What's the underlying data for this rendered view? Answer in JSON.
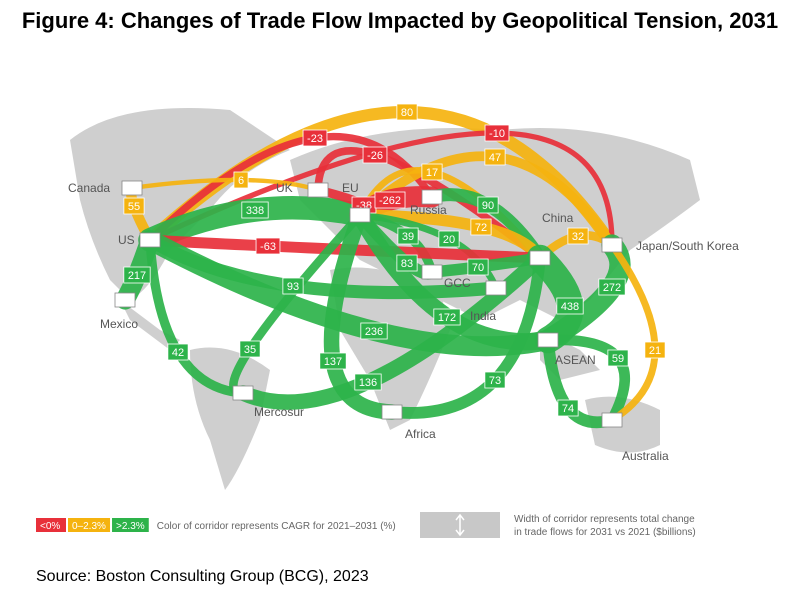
{
  "title": "Figure 4: Changes of Trade Flow Impacted by Geopolitical Tension, 2031",
  "regions": [
    "Canada",
    "US",
    "Mexico",
    "UK",
    "EU",
    "Russia",
    "China",
    "Japan/South Korea",
    "GCC",
    "India",
    "ASEAN",
    "Africa",
    "Mercosur",
    "Australia"
  ],
  "corridors": [
    {
      "value": 80,
      "color": "#f5b30f"
    },
    {
      "value": -23,
      "color": "#e8303a"
    },
    {
      "value": -10,
      "color": "#e8303a"
    },
    {
      "value": -26,
      "color": "#e8303a"
    },
    {
      "value": 47,
      "color": "#f5b30f"
    },
    {
      "value": 6,
      "color": "#f5b30f"
    },
    {
      "value": 17,
      "color": "#f5b30f"
    },
    {
      "value": 55,
      "color": "#f5b30f"
    },
    {
      "value": 338,
      "color": "#2db34a"
    },
    {
      "value": -38,
      "color": "#e8303a"
    },
    {
      "value": -262,
      "color": "#e8303a"
    },
    {
      "value": 90,
      "color": "#2db34a"
    },
    {
      "value": 72,
      "color": "#f5b30f"
    },
    {
      "value": 39,
      "color": "#2db34a"
    },
    {
      "value": 20,
      "color": "#2db34a"
    },
    {
      "value": 32,
      "color": "#f5b30f"
    },
    {
      "value": -63,
      "color": "#e8303a"
    },
    {
      "value": 217,
      "color": "#2db34a"
    },
    {
      "value": 83,
      "color": "#2db34a"
    },
    {
      "value": 70,
      "color": "#2db34a"
    },
    {
      "value": 93,
      "color": "#2db34a"
    },
    {
      "value": 438,
      "color": "#2db34a"
    },
    {
      "value": 272,
      "color": "#2db34a"
    },
    {
      "value": 172,
      "color": "#2db34a"
    },
    {
      "value": 236,
      "color": "#2db34a"
    },
    {
      "value": 42,
      "color": "#2db34a"
    },
    {
      "value": 35,
      "color": "#2db34a"
    },
    {
      "value": 137,
      "color": "#2db34a"
    },
    {
      "value": 59,
      "color": "#2db34a"
    },
    {
      "value": 21,
      "color": "#f5b30f"
    },
    {
      "value": 136,
      "color": "#2db34a"
    },
    {
      "value": 73,
      "color": "#2db34a"
    },
    {
      "value": 74,
      "color": "#2db34a"
    }
  ],
  "legend": {
    "colors": [
      {
        "label": "<0%",
        "color": "#e8303a"
      },
      {
        "label": "0–2.3%",
        "color": "#f5b30f"
      },
      {
        "label": ">2.3%",
        "color": "#2db34a"
      }
    ],
    "color_note": "Color of corridor represents CAGR for 2021–2031 (%)",
    "width_note": [
      "Width of corridor represents total change",
      "in trade flows for 2031 vs 2021 ($billions)"
    ]
  },
  "source": "Source: Boston Consulting Group (BCG), 2023"
}
